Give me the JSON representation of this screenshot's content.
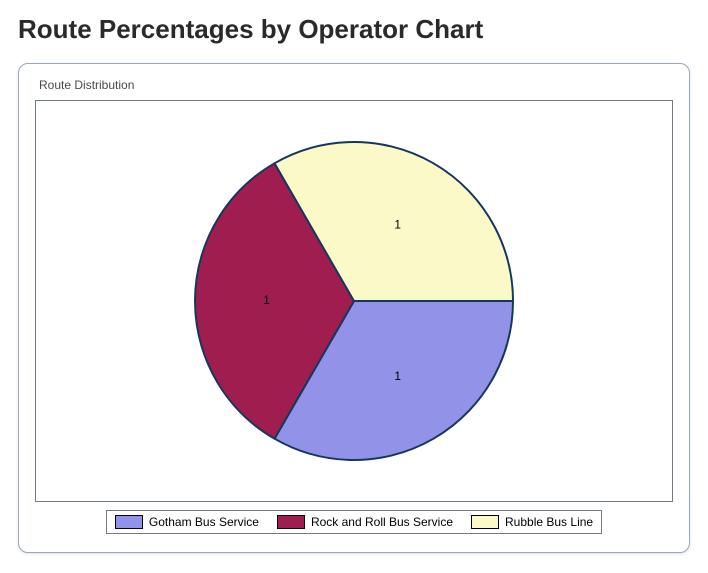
{
  "page_title": "Route Percentages by Operator Chart",
  "panel_title": "Route Distribution",
  "chart": {
    "type": "pie",
    "background_color": "#ffffff",
    "border_color": "#6f7b88",
    "stroke_color": "#17365d",
    "stroke_width": 2,
    "radius": 160,
    "label_fontsize": 12,
    "label_color": "#000000",
    "slices": [
      {
        "name": "Gotham Bus Service",
        "value": 1,
        "label": "1",
        "color": "#9292e8",
        "start_deg": 0,
        "end_deg": 120
      },
      {
        "name": "Rock and Roll Bus Service",
        "value": 1,
        "label": "1",
        "color": "#a01d50",
        "start_deg": 120,
        "end_deg": 240
      },
      {
        "name": "Rubble Bus Line",
        "value": 1,
        "label": "1",
        "color": "#fbf9c7",
        "start_deg": 240,
        "end_deg": 360
      }
    ]
  },
  "legend": {
    "items": [
      {
        "label": "Gotham Bus Service",
        "color": "#9292e8"
      },
      {
        "label": "Rock and Roll Bus Service",
        "color": "#a01d50"
      },
      {
        "label": "Rubble Bus Line",
        "color": "#fbf9c7"
      }
    ],
    "border_color": "#6f7b88",
    "fontsize": 12
  }
}
